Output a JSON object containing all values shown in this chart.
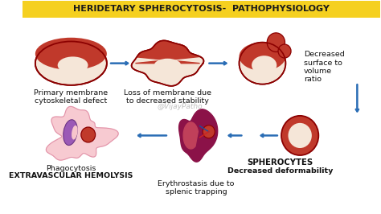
{
  "title": "HERIDETARY SPHEROCYTOSIS-  PATHOPHYSIOLOGY",
  "title_bg": "#f5d020",
  "title_color": "#1a1a1a",
  "bg_color": "#ffffff",
  "watermark": "@VijayPatho",
  "watermark_color": "#aaaaaa",
  "labels": {
    "cell1": "Primary membrane\ncytoskeletal defect",
    "cell2": "Loss of membrane due\nto decreased stability",
    "cell3_right": "Decreased\nsurface to\nvolume\nratio",
    "cell4_a": "SPHEROCYTES",
    "cell4_b": "Decreased deformability",
    "cell5": "Erythrostasis due to\nsplenic trapping",
    "cell6_top": "Phagocytosis",
    "cell6_bot": "EXTRAVASCULAR HEMOLYSIS"
  },
  "rbc_red": "#c0392b",
  "rbc_dark": "#8b0000",
  "rbc_cream": "#f5e6d8",
  "rbc_outline": "#c0392b",
  "arrow_color": "#2a6db5",
  "label_fontsize": 6.8
}
